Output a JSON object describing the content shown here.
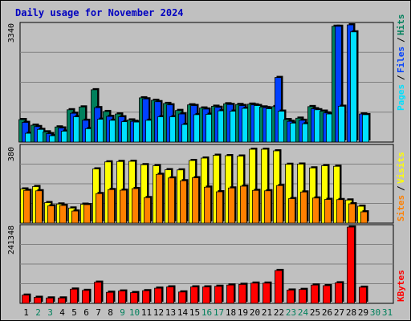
{
  "page_title": "Daily usage for November 2024",
  "colors": {
    "hits": "#00805c",
    "files": "#0040ff",
    "pages": "#00e0ff",
    "visits": "#ffff00",
    "sites": "#ff8000",
    "kbytes": "#ff0000",
    "weekend_label": "#00805c",
    "weekday_label": "#000000"
  },
  "chart_data": [
    {
      "type": "bar",
      "title": "Daily usage for November 2024",
      "categories": [
        "1",
        "2",
        "3",
        "4",
        "5",
        "6",
        "7",
        "8",
        "9",
        "10",
        "11",
        "12",
        "13",
        "14",
        "15",
        "16",
        "17",
        "18",
        "19",
        "20",
        "21",
        "22",
        "23",
        "24",
        "25",
        "26",
        "27",
        "28",
        "29",
        "30",
        "31"
      ],
      "weekend_days": [
        "2",
        "3",
        "9",
        "10",
        "16",
        "17",
        "23",
        "24",
        "30",
        "31"
      ],
      "ymax_label": "3340",
      "ylim": [
        0,
        3340
      ],
      "right_labels": [
        "Pages",
        "Files",
        "Hits"
      ],
      "series": [
        {
          "name": "Hits",
          "values": [
            640,
            480,
            290,
            430,
            920,
            1000,
            1490,
            870,
            800,
            630,
            1260,
            1190,
            1100,
            900,
            1060,
            970,
            1020,
            1090,
            1070,
            1080,
            1000,
            1010,
            640,
            680,
            1010,
            880,
            3300,
            0,
            0,
            0,
            0
          ]
        },
        {
          "name": "Files",
          "values": [
            560,
            440,
            240,
            400,
            820,
            620,
            980,
            730,
            720,
            590,
            1230,
            1150,
            1060,
            800,
            1040,
            940,
            990,
            1070,
            1040,
            1060,
            980,
            1840,
            590,
            620,
            950,
            830,
            3300,
            3340,
            800,
            0,
            0
          ]
        },
        {
          "name": "Pages",
          "values": [
            250,
            360,
            180,
            310,
            720,
            380,
            650,
            620,
            580,
            570,
            620,
            720,
            720,
            500,
            780,
            790,
            890,
            880,
            960,
            1040,
            950,
            880,
            540,
            520,
            920,
            800,
            1020,
            3140,
            780,
            0,
            0
          ]
        }
      ]
    },
    {
      "type": "bar",
      "ymax_label": "380",
      "ylim": [
        0,
        380
      ],
      "right_labels": [
        "Sites",
        "Visits"
      ],
      "series": [
        {
          "name": "Visits",
          "values": [
            170,
            182,
            102,
            95,
            75,
            94,
            270,
            305,
            307,
            308,
            291,
            286,
            266,
            265,
            312,
            324,
            338,
            336,
            334,
            368,
            368,
            360,
            293,
            294,
            275,
            286,
            283,
            115,
            84,
            0,
            0
          ]
        },
        {
          "name": "Sites",
          "values": [
            163,
            161,
            86,
            88,
            60,
            92,
            147,
            167,
            164,
            172,
            127,
            243,
            225,
            211,
            226,
            179,
            156,
            175,
            184,
            163,
            161,
            187,
            122,
            155,
            125,
            118,
            117,
            96,
            56,
            0,
            0
          ]
        }
      ]
    },
    {
      "type": "bar",
      "ymax_label": "241348",
      "ylim": [
        0,
        241348
      ],
      "right_labels": [
        "KBytes"
      ],
      "series": [
        {
          "name": "KBytes",
          "values": [
            26000,
            19000,
            17000,
            17000,
            45000,
            41000,
            67000,
            35000,
            39000,
            34000,
            40000,
            48000,
            52000,
            36000,
            52000,
            52000,
            54000,
            58000,
            60000,
            64000,
            64000,
            104000,
            42000,
            44000,
            58000,
            56000,
            65000,
            241348,
            51000,
            0,
            0
          ]
        }
      ]
    }
  ]
}
